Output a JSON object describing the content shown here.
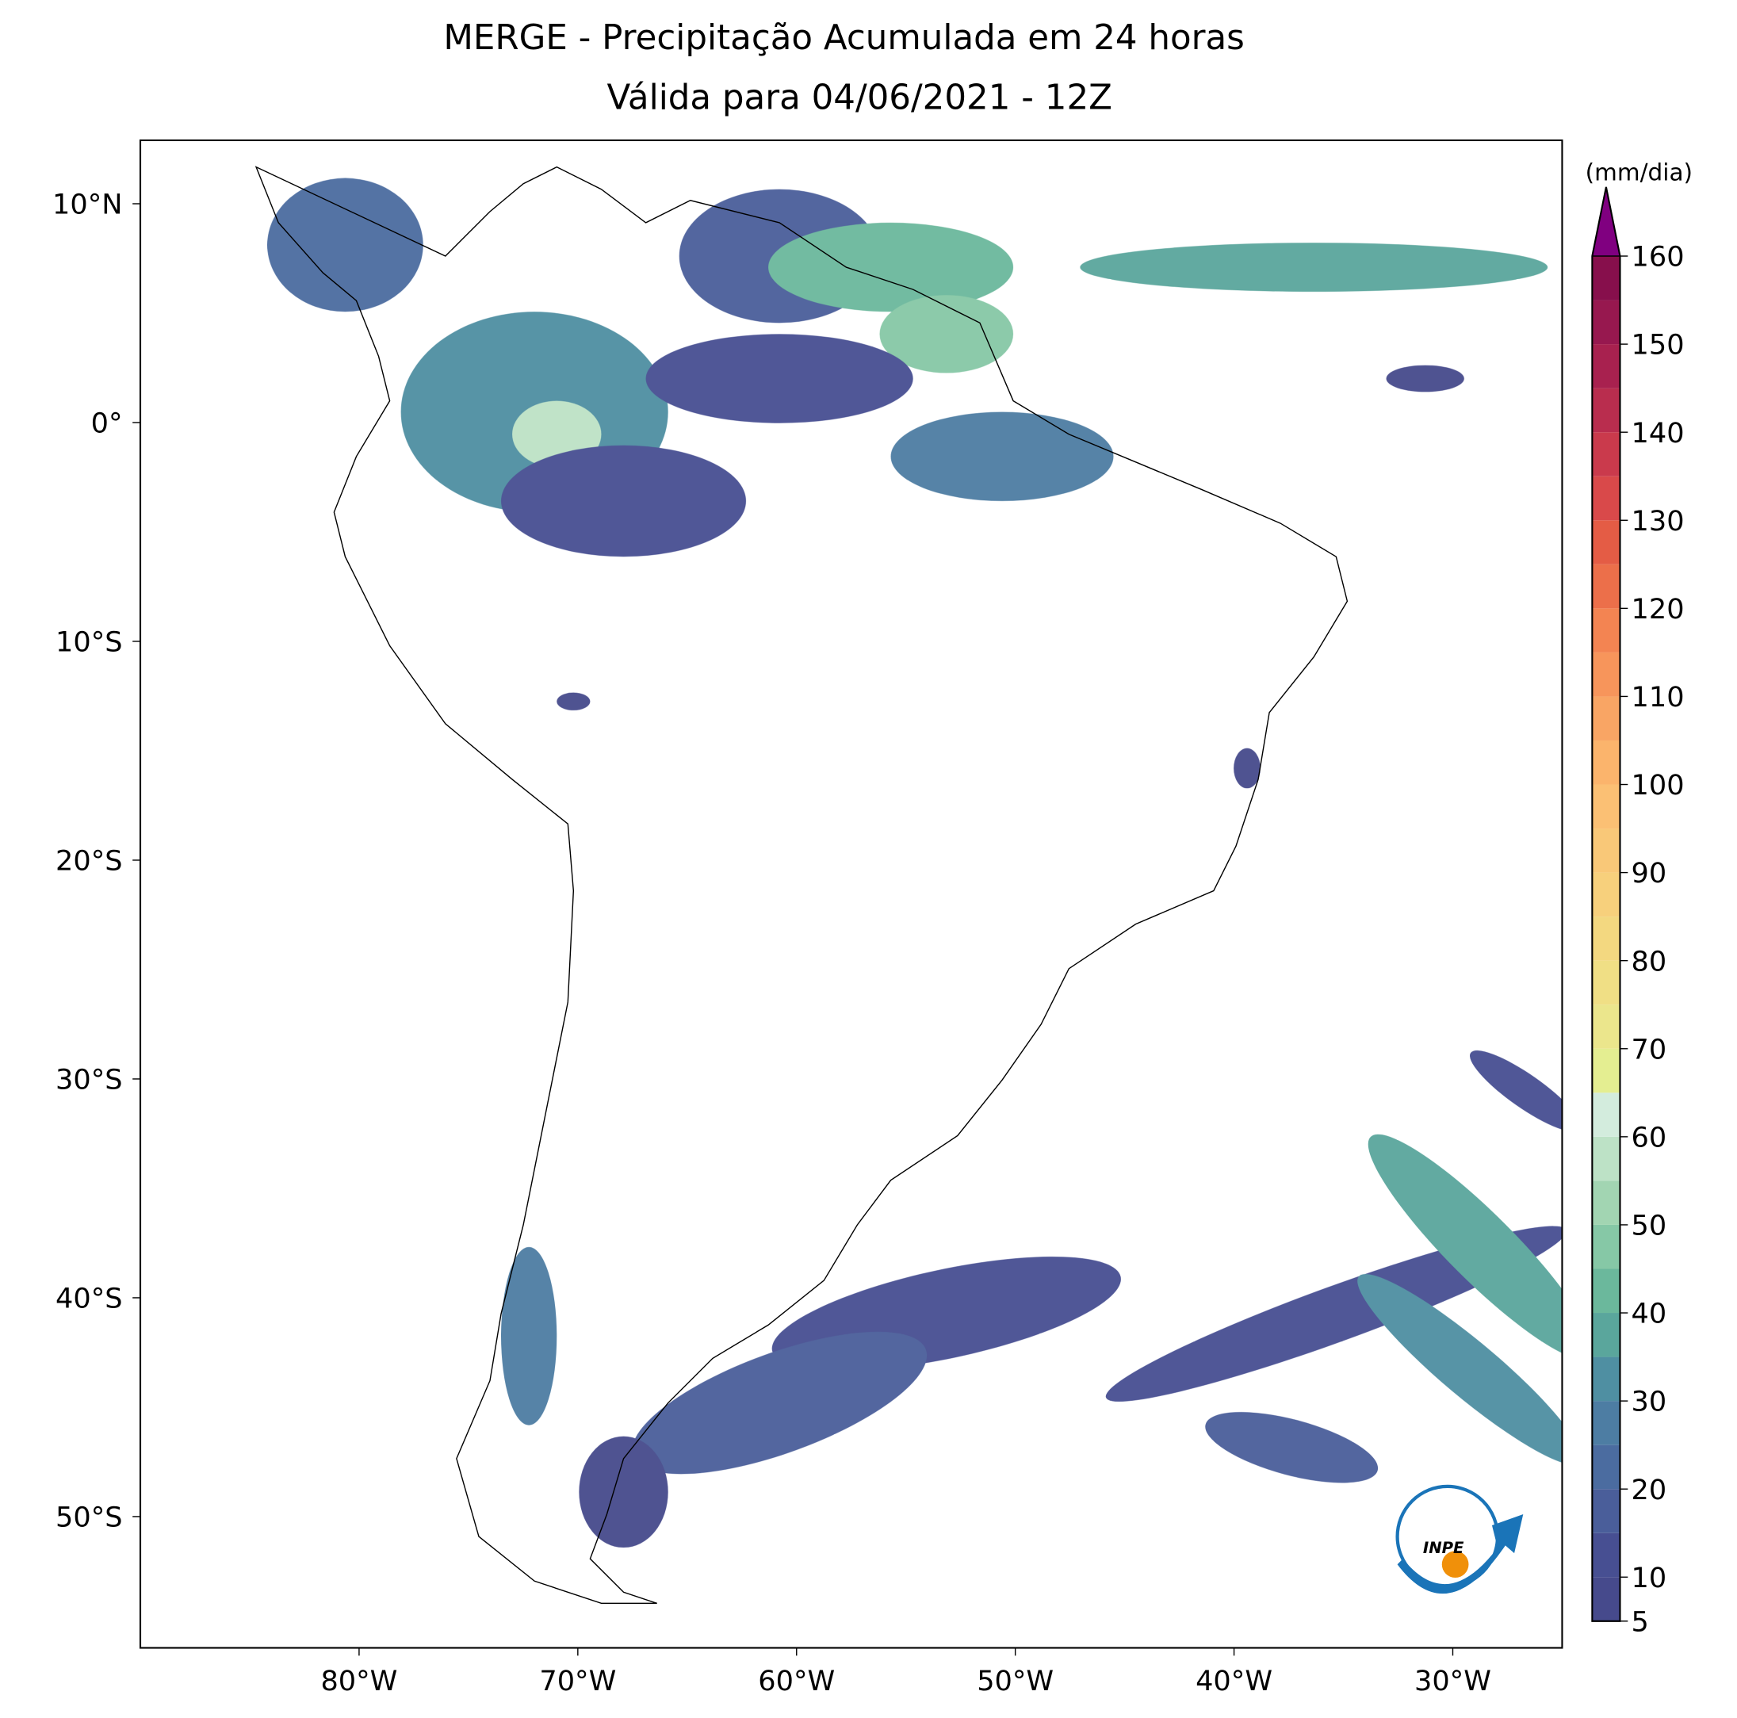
{
  "chart_data": {
    "type": "map",
    "title": "MERGE - Precipitação Acumulada em 24 horas",
    "subtitle": "Válida para 04/06/2021 - 12Z",
    "xlim": [
      -90,
      -25
    ],
    "ylim": [
      -56,
      12.9
    ],
    "xticks": [
      {
        "value": -80,
        "label": "80°W"
      },
      {
        "value": -70,
        "label": "70°W"
      },
      {
        "value": -60,
        "label": "60°W"
      },
      {
        "value": -50,
        "label": "50°W"
      },
      {
        "value": -40,
        "label": "40°W"
      },
      {
        "value": -30,
        "label": "30°W"
      }
    ],
    "yticks": [
      {
        "value": 10,
        "label": "10°N"
      },
      {
        "value": 0,
        "label": "0°"
      },
      {
        "value": -10,
        "label": "10°S"
      },
      {
        "value": -20,
        "label": "20°S"
      },
      {
        "value": -30,
        "label": "30°S"
      },
      {
        "value": -40,
        "label": "40°S"
      },
      {
        "value": -50,
        "label": "50°S"
      }
    ],
    "colorbar": {
      "label": "(mm/dia)",
      "lim": [
        5,
        160
      ],
      "ticks": [
        5,
        10,
        20,
        30,
        40,
        50,
        60,
        70,
        80,
        90,
        100,
        110,
        120,
        130,
        140,
        150,
        160
      ],
      "levels": [
        5,
        10,
        15,
        20,
        25,
        30,
        35,
        40,
        45,
        50,
        55,
        60,
        65,
        70,
        75,
        80,
        85,
        90,
        95,
        100,
        105,
        110,
        115,
        120,
        125,
        130,
        135,
        140,
        145,
        150,
        155,
        160
      ],
      "colors": [
        "#464a8c",
        "#474f92",
        "#4a5e9a",
        "#4b6ca0",
        "#4d7da3",
        "#4f8fa2",
        "#5aa69c",
        "#6bb89c",
        "#86c8a6",
        "#a2d5b2",
        "#bde2c6",
        "#d3ecdd",
        "#e4ee91",
        "#ebe68c",
        "#f0df85",
        "#f3d880",
        "#f7d07c",
        "#f9c878",
        "#fbc074",
        "#fbb46c",
        "#f9a564",
        "#f7955b",
        "#f38452",
        "#ec6f4a",
        "#e45c45",
        "#d9494a",
        "#ca3a4c",
        "#b92d4e",
        "#a8214f",
        "#97184f",
        "#870f4c"
      ],
      "extend_color": "#800080"
    }
  },
  "logo": {
    "text": "INPE"
  }
}
